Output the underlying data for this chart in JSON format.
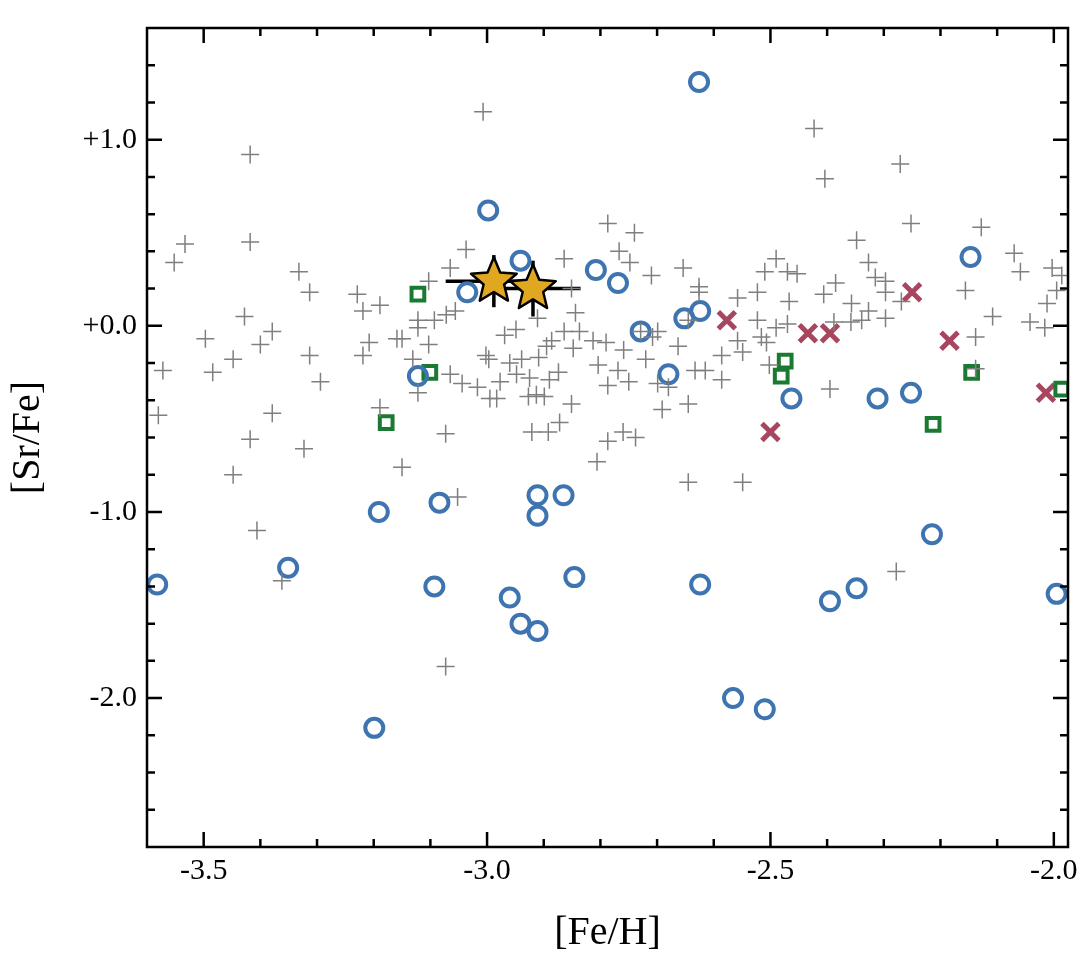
{
  "chart_data": {
    "type": "scatter",
    "xlabel": "[Fe/H]",
    "ylabel": "[Sr/Fe]",
    "xlim": [
      -3.6,
      -1.975
    ],
    "ylim": [
      -2.8,
      1.6
    ],
    "xticks": [
      {
        "value": -3.5,
        "label": "-3.5"
      },
      {
        "value": -3.4,
        "label": null
      },
      {
        "value": -3.3,
        "label": null
      },
      {
        "value": -3.2,
        "label": null
      },
      {
        "value": -3.1,
        "label": null
      },
      {
        "value": -3.0,
        "label": "-3.0"
      },
      {
        "value": -2.9,
        "label": null
      },
      {
        "value": -2.8,
        "label": null
      },
      {
        "value": -2.7,
        "label": null
      },
      {
        "value": -2.6,
        "label": null
      },
      {
        "value": -2.5,
        "label": "-2.5"
      },
      {
        "value": -2.4,
        "label": null
      },
      {
        "value": -2.3,
        "label": null
      },
      {
        "value": -2.2,
        "label": null
      },
      {
        "value": -2.1,
        "label": null
      },
      {
        "value": -2.0,
        "label": "-2.0"
      }
    ],
    "yticks": [
      {
        "value": -2.6,
        "label": null
      },
      {
        "value": -2.4,
        "label": null
      },
      {
        "value": -2.2,
        "label": null
      },
      {
        "value": -2.0,
        "label": "-2.0"
      },
      {
        "value": -1.8,
        "label": null
      },
      {
        "value": -1.6,
        "label": null
      },
      {
        "value": -1.4,
        "label": null
      },
      {
        "value": -1.2,
        "label": null
      },
      {
        "value": -1.0,
        "label": "-1.0"
      },
      {
        "value": -0.8,
        "label": null
      },
      {
        "value": -0.6,
        "label": null
      },
      {
        "value": -0.4,
        "label": null
      },
      {
        "value": -0.2,
        "label": null
      },
      {
        "value": 0,
        "label": "+0.0"
      },
      {
        "value": 0.2,
        "label": null
      },
      {
        "value": 0.4,
        "label": null
      },
      {
        "value": 0.6,
        "label": null
      },
      {
        "value": 0.8,
        "label": null
      },
      {
        "value": 1.0,
        "label": "+1.0"
      },
      {
        "value": 1.2,
        "label": null
      },
      {
        "value": 1.4,
        "label": null
      }
    ],
    "series": [
      {
        "color": "#7f7f7f",
        "marker": "plus",
        "x": [
          -3.418,
          -3.533,
          -3.552,
          -3.418,
          -3.332,
          -3.313,
          -3.229,
          -3.219,
          -3.189,
          -3.103,
          -3.065,
          -3.428,
          -3.497,
          -3.379,
          -3.4,
          -3.448,
          -3.484,
          -3.572,
          -3.313,
          -3.294,
          -3.208,
          -3.219,
          -3.159,
          -3.15,
          -3.122,
          -3.122,
          -3.093,
          -3.072,
          -3.103,
          -3.131,
          -3.122,
          -3.065,
          -3.189,
          -3.58,
          -3.379,
          -3.418,
          -3.323,
          -3.448,
          -3.15,
          -3.073,
          -3.406,
          -3.362,
          -3.073,
          -3.052,
          -3.007,
          -2.787,
          -2.74,
          -2.767,
          -2.748,
          -2.71,
          -2.654,
          -3.037,
          -2.864,
          -2.851,
          -2.626,
          -2.626,
          -2.558,
          -2.523,
          -2.523,
          -2.844,
          -2.911,
          -3.056,
          -2.969,
          -2.949,
          -2.864,
          -2.837,
          -2.813,
          -2.79,
          -2.759,
          -2.729,
          -2.708,
          -2.699,
          -2.663,
          -2.645,
          -3.002,
          -2.997,
          -2.939,
          -2.96,
          -2.909,
          -2.886,
          -2.895,
          -2.848,
          -3.044,
          -3.017,
          -2.977,
          -2.948,
          -2.925,
          -2.874,
          -2.89,
          -2.983,
          -2.995,
          -2.913,
          -2.927,
          -2.899,
          -2.851,
          -2.804,
          -2.769,
          -2.787,
          -2.75,
          -2.699,
          -2.68,
          -2.72,
          -2.633,
          -2.615,
          -2.586,
          -2.586,
          -2.549,
          -2.558,
          -2.691,
          -2.645,
          -2.921,
          -2.892,
          -2.872,
          -2.787,
          -2.76,
          -2.738,
          -2.806,
          -2.645,
          -2.549,
          -2.423,
          -2.271,
          -2.404,
          -2.252,
          -2.128,
          -2.348,
          -2.07,
          -2.059,
          -2.327,
          -2.49,
          -2.51,
          -2.47,
          -2.453,
          -2.467,
          -2.385,
          -2.406,
          -2.315,
          -2.297,
          -2.297,
          -2.269,
          -2.357,
          -2.327,
          -2.339,
          -2.297,
          -2.156,
          -2.108,
          -2.012,
          -2.042,
          -2.016,
          -2.003,
          -1.986,
          -1.995,
          -2.49,
          -2.47,
          -2.388,
          -2.358,
          -2.516,
          -2.507,
          -2.502,
          -2.395,
          -2.138,
          -2.138,
          -2.278
        ],
        "values": [
          0.92,
          0.44,
          0.34,
          0.45,
          0.29,
          0.18,
          0.17,
          0.08,
          0.11,
          0.24,
          0.31,
          0.05,
          -0.07,
          -0.03,
          -0.1,
          -0.18,
          -0.25,
          -0.24,
          -0.16,
          -0.3,
          -0.09,
          -0.16,
          -0.07,
          -0.07,
          0.03,
          -0.01,
          0.03,
          0.06,
          -0.1,
          -0.18,
          -0.36,
          -0.26,
          -0.44,
          -0.48,
          -0.47,
          -0.61,
          -0.66,
          -0.8,
          -0.76,
          -0.58,
          -1.1,
          -1.37,
          -1.83,
          -0.92,
          1.15,
          0.55,
          0.5,
          0.4,
          0.34,
          0.27,
          0.31,
          0.41,
          0.36,
          0.2,
          0.21,
          0.18,
          0.15,
          0.18,
          0.03,
          0.07,
          0.04,
          0.08,
          -0.05,
          -0.02,
          -0.03,
          -0.03,
          -0.08,
          -0.09,
          -0.13,
          -0.03,
          -0.06,
          -0.03,
          -0.11,
          0.03,
          -0.16,
          -0.18,
          -0.18,
          -0.2,
          -0.17,
          -0.08,
          -0.11,
          -0.12,
          -0.31,
          -0.33,
          -0.3,
          -0.26,
          -0.28,
          -0.25,
          -0.29,
          -0.39,
          -0.39,
          -0.37,
          -0.38,
          -0.38,
          -0.42,
          -0.21,
          -0.24,
          -0.32,
          -0.3,
          -0.31,
          -0.33,
          -0.18,
          -0.24,
          -0.24,
          -0.29,
          -0.16,
          -0.14,
          -0.08,
          -0.45,
          -0.42,
          -0.57,
          -0.57,
          -0.52,
          -0.62,
          -0.57,
          -0.6,
          -0.73,
          -0.84,
          -0.84,
          1.06,
          0.87,
          0.79,
          0.55,
          0.53,
          0.46,
          0.39,
          0.29,
          0.34,
          0.36,
          0.29,
          0.29,
          0.28,
          0.13,
          0.23,
          0.17,
          0.26,
          0.24,
          0.18,
          0.13,
          0.12,
          0.08,
          0.03,
          0.04,
          0.19,
          0.05,
          0.12,
          0.02,
          -0.01,
          0.31,
          0.27,
          0.19,
          -0.01,
          0.01,
          0.02,
          0.02,
          -0.06,
          -0.09,
          -0.21,
          -0.34,
          -0.06,
          -0.23,
          -1.32
        ]
      },
      {
        "color": "#3e74b0",
        "marker": "circle",
        "x": [
          -2.626,
          -2.998,
          -2.941,
          -2.808,
          -2.769,
          -2.624,
          -2.652,
          -2.729,
          -3.035,
          -3.122,
          -2.68,
          -2.147,
          -2.463,
          -2.311,
          -2.252,
          -3.191,
          -3.084,
          -2.911,
          -2.865,
          -2.911,
          -3.351,
          -3.093,
          -3.582,
          -2.96,
          -2.941,
          -2.911,
          -2.846,
          -2.624,
          -2.215,
          -2.348,
          -2.395,
          -1.995,
          -2.566,
          -2.51,
          -3.199
        ],
        "values": [
          1.31,
          0.62,
          0.35,
          0.3,
          0.23,
          0.08,
          0.04,
          -0.03,
          0.18,
          -0.27,
          -0.26,
          0.37,
          -0.39,
          -0.39,
          -0.36,
          -1.0,
          -0.95,
          -0.91,
          -0.91,
          -1.02,
          -1.3,
          -1.4,
          -1.39,
          -1.46,
          -1.6,
          -1.64,
          -1.35,
          -1.39,
          -1.12,
          -1.41,
          -1.48,
          -1.44,
          -2.0,
          -2.06,
          -2.16
        ]
      },
      {
        "color": "#1a7a32",
        "marker": "square",
        "x": [
          -3.122,
          -3.101,
          -3.178,
          -2.474,
          -2.481,
          -2.145,
          -2.213,
          -1.986
        ],
        "values": [
          0.17,
          -0.25,
          -0.52,
          -0.19,
          -0.27,
          -0.25,
          -0.53,
          -0.34
        ]
      },
      {
        "color": "#a8455f",
        "marker": "cross",
        "x": [
          -2.577,
          -2.5,
          -2.434,
          -2.395,
          -2.25,
          -2.184,
          -2.014
        ],
        "values": [
          0.03,
          -0.57,
          -0.04,
          -0.04,
          0.18,
          -0.08,
          -0.36
        ]
      },
      {
        "color": "#e0a820",
        "marker": "star",
        "x": [
          -2.988,
          -2.919
        ],
        "values": [
          0.24,
          0.2
        ],
        "errors": [
          0.14,
          0.15
        ],
        "xerrors": [
          0.085,
          0.084
        ]
      }
    ]
  }
}
